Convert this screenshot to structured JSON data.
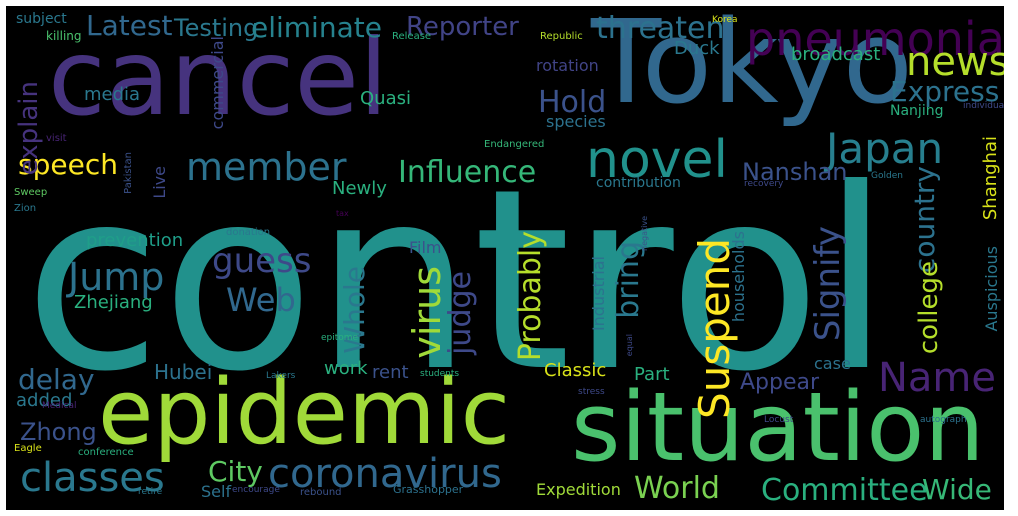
{
  "colors": {
    "background": "#000000",
    "teal": "#21918c",
    "purple": "#440154",
    "indigo": "#3b528b",
    "blue": "#31688e",
    "green": "#5ec962",
    "lime": "#b5de2b",
    "yellow": "#fde725",
    "cyan": "#26828e",
    "mint": "#35b779"
  },
  "words": [
    {
      "text": "control",
      "color": "#21918c"
    },
    {
      "text": "cancel",
      "color": "#46337e"
    },
    {
      "text": "Tokyo",
      "color": "#31688e"
    },
    {
      "text": "situation",
      "color": "#4ac16d"
    },
    {
      "text": "epidemic",
      "color": "#a0da39"
    },
    {
      "text": "coronavirus",
      "color": "#31688e"
    },
    {
      "text": "pneumonia",
      "color": "#440154"
    },
    {
      "text": "novel",
      "color": "#21918c"
    },
    {
      "text": "Japan",
      "color": "#277f8e"
    },
    {
      "text": "news",
      "color": "#b5de2b"
    },
    {
      "text": "member",
      "color": "#2c728e"
    },
    {
      "text": "Suspend",
      "color": "#fde725"
    },
    {
      "text": "Jump",
      "color": "#2c728e"
    },
    {
      "text": "Name",
      "color": "#482475"
    },
    {
      "text": "virus",
      "color": "#a0da39"
    },
    {
      "text": "guess",
      "color": "#3e4989"
    },
    {
      "text": "Web",
      "color": "#31688e"
    },
    {
      "text": "classes",
      "color": "#2a788e"
    },
    {
      "text": "Committee",
      "color": "#2ab07f"
    },
    {
      "text": "Wide",
      "color": "#37b877"
    },
    {
      "text": "World",
      "color": "#7ad151"
    },
    {
      "text": "City",
      "color": "#5ec962"
    },
    {
      "text": "threaten",
      "color": "#2c728e"
    },
    {
      "text": "Express",
      "color": "#2c728e"
    },
    {
      "text": "Latest",
      "color": "#31688e"
    },
    {
      "text": "Testing",
      "color": "#2a788e"
    },
    {
      "text": "eliminate",
      "color": "#26828e"
    },
    {
      "text": "Reporter",
      "color": "#414487"
    },
    {
      "text": "Influence",
      "color": "#35b779"
    },
    {
      "text": "speech",
      "color": "#fde725"
    },
    {
      "text": "Hold",
      "color": "#3b528b"
    },
    {
      "text": "Nanshan",
      "color": "#3b528b"
    },
    {
      "text": "Signify",
      "color": "#3b528b"
    },
    {
      "text": "country",
      "color": "#2c728e"
    },
    {
      "text": "college",
      "color": "#b5de2b"
    },
    {
      "text": "Probably",
      "color": "#b5de2b"
    },
    {
      "text": "judge",
      "color": "#3e4989"
    },
    {
      "text": "bring",
      "color": "#2a788e"
    },
    {
      "text": "Whole",
      "color": "#2a788e"
    },
    {
      "text": "delay",
      "color": "#31688e"
    },
    {
      "text": "Zhong",
      "color": "#3b528b"
    },
    {
      "text": "Appear",
      "color": "#3e4989"
    },
    {
      "text": "explain",
      "color": "#46337e"
    },
    {
      "text": "Duck",
      "color": "#2a788e"
    },
    {
      "text": "broadcast",
      "color": "#2ab07f"
    },
    {
      "text": "Hubei",
      "color": "#2c728e"
    },
    {
      "text": "Classic",
      "color": "#d8e219"
    },
    {
      "text": "Part",
      "color": "#2ab07f"
    },
    {
      "text": "Expedition",
      "color": "#a0da39"
    },
    {
      "text": "media",
      "color": "#2a788e"
    },
    {
      "text": "Quasi",
      "color": "#2ab07f"
    },
    {
      "text": "Nanjing",
      "color": "#2ab07f"
    },
    {
      "text": "Newly",
      "color": "#2ab07f"
    },
    {
      "text": "work",
      "color": "#2ab07f"
    },
    {
      "text": "rent",
      "color": "#3b528b"
    },
    {
      "text": "added",
      "color": "#2a788e"
    },
    {
      "text": "Self",
      "color": "#2c728e"
    },
    {
      "text": "case",
      "color": "#2c728e"
    },
    {
      "text": "prevention",
      "color": "#1f9e89"
    },
    {
      "text": "Film",
      "color": "#3b528b"
    },
    {
      "text": "Zhejiang",
      "color": "#2ab07f"
    },
    {
      "text": "species",
      "color": "#2c728e"
    },
    {
      "text": "contribution",
      "color": "#2a788e"
    },
    {
      "text": "Industrial",
      "color": "#2c728e"
    },
    {
      "text": "households",
      "color": "#2c728e"
    },
    {
      "text": "Shanghai",
      "color": "#d8e219"
    },
    {
      "text": "Auspicious",
      "color": "#2a788e"
    },
    {
      "text": "Live",
      "color": "#3e4989"
    },
    {
      "text": "commercial",
      "color": "#3e4989"
    },
    {
      "text": "subject",
      "color": "#2a788e"
    },
    {
      "text": "killing",
      "color": "#4ac16d"
    },
    {
      "text": "visit",
      "color": "#482475"
    },
    {
      "text": "Sweep",
      "color": "#5ec962"
    },
    {
      "text": "Zion",
      "color": "#2a788e"
    },
    {
      "text": "Pakistan",
      "color": "#3b528b"
    },
    {
      "text": "Endangered",
      "color": "#35b779"
    },
    {
      "text": "rotation",
      "color": "#414487"
    },
    {
      "text": "Republic",
      "color": "#b5de2b"
    },
    {
      "text": "Korea",
      "color": "#d8e219"
    },
    {
      "text": "Release",
      "color": "#2ab07f"
    },
    {
      "text": "donation",
      "color": "#2a788e"
    },
    {
      "text": "negative",
      "color": "#3b528b"
    },
    {
      "text": "recovery",
      "color": "#3e4989"
    },
    {
      "text": "Golden",
      "color": "#2a788e"
    },
    {
      "text": "individual",
      "color": "#3e4989"
    },
    {
      "text": "tax",
      "color": "#440154"
    },
    {
      "text": "epitome",
      "color": "#2ab07f"
    },
    {
      "text": "equal",
      "color": "#3e4989"
    },
    {
      "text": "Lakers",
      "color": "#2a788e"
    },
    {
      "text": "students",
      "color": "#2ab07f"
    },
    {
      "text": "stress",
      "color": "#3e4989"
    },
    {
      "text": "Medical",
      "color": "#482475"
    },
    {
      "text": "Locust",
      "color": "#3e4989"
    },
    {
      "text": "autograph",
      "color": "#2c728e"
    },
    {
      "text": "Eagle",
      "color": "#d8e219"
    },
    {
      "text": "conference",
      "color": "#2ab07f"
    },
    {
      "text": "retire",
      "color": "#2a788e"
    },
    {
      "text": "encourage",
      "color": "#3e4989"
    },
    {
      "text": "rebound",
      "color": "#3b528b"
    },
    {
      "text": "Grasshopper",
      "color": "#2c728e"
    }
  ]
}
